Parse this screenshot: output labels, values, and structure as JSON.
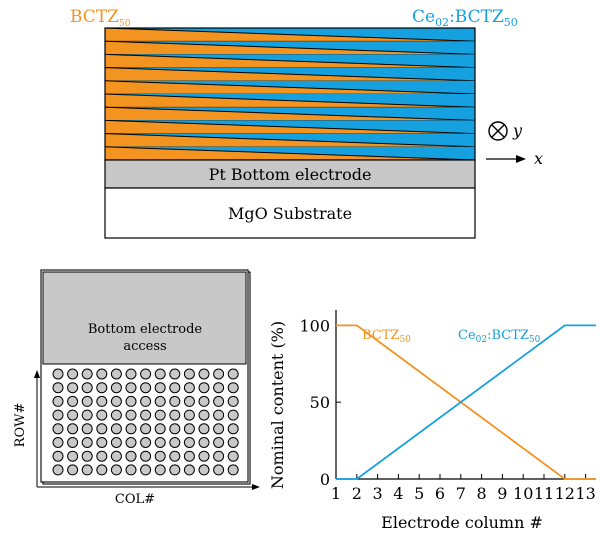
{
  "stack": {
    "left_label": {
      "base": "BCTZ",
      "sub": "50"
    },
    "right_label": {
      "pre": "Ce",
      "pre_sub": "02",
      "mid": ":BCTZ",
      "sub": "50"
    },
    "layer_count": 10,
    "bottom_electrode": "Pt Bottom electrode",
    "substrate": "MgO Substrate",
    "axis_y": "y",
    "axis_x": "x"
  },
  "array": {
    "access_label_line1": "Bottom electrode",
    "access_label_line2": "access",
    "rows": 8,
    "cols": 13,
    "row_label": "ROW#",
    "col_label": "COL#"
  },
  "chart_data": {
    "type": "line",
    "xlabel": "Electrode column #",
    "ylabel": "Nominal content (%)",
    "x_ticks": [
      "1",
      "2",
      "3",
      "4",
      "5",
      "6",
      "7",
      "8",
      "9",
      "10",
      "11",
      "12",
      "13"
    ],
    "y_ticks": [
      "0",
      "50",
      "100"
    ],
    "xlim": [
      1,
      13.5
    ],
    "ylim": [
      0,
      110
    ],
    "series": [
      {
        "name": "BCTZ50",
        "label_base": "BCTZ",
        "label_sub": "50",
        "color": "#f39320",
        "x": [
          1,
          2,
          12,
          13.5
        ],
        "y": [
          100,
          100,
          0,
          0
        ]
      },
      {
        "name": "Ce02:BCTZ50",
        "label_pre": "Ce",
        "label_pre_sub": "02",
        "label_mid": ":BCTZ",
        "label_sub": "50",
        "color": "#15a0df",
        "x": [
          1,
          2,
          12,
          13.5
        ],
        "y": [
          0,
          0,
          100,
          100
        ]
      }
    ]
  },
  "colors": {
    "bctz": "#f39320",
    "ce": "#15a0df",
    "electrode": "#c8c8c8",
    "substrate": "#ffffff"
  }
}
